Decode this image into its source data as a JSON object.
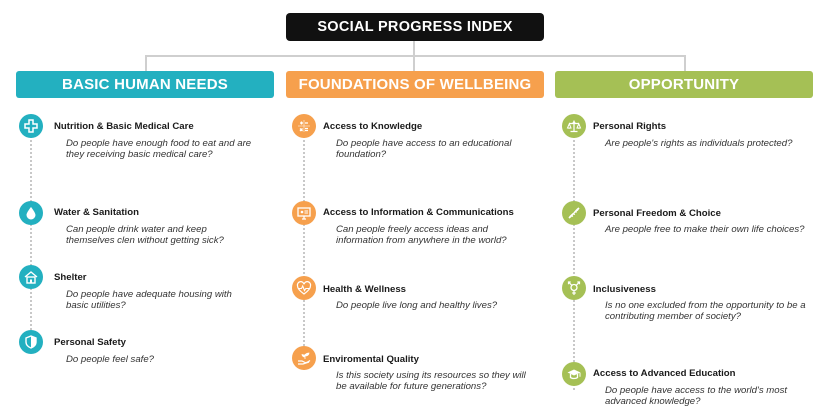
{
  "title": "SOCIAL PROGRESS INDEX",
  "colors": {
    "teal": "#23b0c0",
    "orange": "#f6a04d",
    "green": "#a5c055",
    "dark": "#111111"
  },
  "dimensions": [
    {
      "name": "BASIC HUMAN NEEDS",
      "components": [
        {
          "icon": "medical-cross-icon",
          "title": "Nutrition & Basic Medical Care",
          "question": "Do people have enough food to eat and are they receiving basic medical care?"
        },
        {
          "icon": "water-drop-icon",
          "title": "Water & Sanitation",
          "question": "Can people drink water and keep themselves clen without getting sick?"
        },
        {
          "icon": "house-icon",
          "title": "Shelter",
          "question": "Do people have adequate housing with basic utilities?"
        },
        {
          "icon": "shield-icon",
          "title": "Personal Safety",
          "question": "Do people feel safe?"
        }
      ]
    },
    {
      "name": "FOUNDATIONS OF WELLBEING",
      "components": [
        {
          "icon": "calculator-icon",
          "title": "Access to Knowledge",
          "question": "Do people have access to an educational foundation?"
        },
        {
          "icon": "monitor-icon",
          "title": "Access to Information & Communications",
          "question": "Can people freely access ideas and information from anywhere in the world?"
        },
        {
          "icon": "heartbeat-icon",
          "title": "Health & Wellness",
          "question": "Do people live long and healthy lives?"
        },
        {
          "icon": "hand-plant-icon",
          "title": "Enviromental Quality",
          "question": "Is this society using its resources so they will be available for future generations?"
        }
      ]
    },
    {
      "name": "OPPORTUNITY",
      "components": [
        {
          "icon": "scales-icon",
          "title": "Personal Rights",
          "question": "Are people's rights as individuals protected?"
        },
        {
          "icon": "dna-icon",
          "title": "Personal Freedom & Choice",
          "question": "Are people free to make their own life choices?"
        },
        {
          "icon": "gender-icon",
          "title": "Inclusiveness",
          "question": "Is no one excluded from the opportunity to be a contributing member of society?"
        },
        {
          "icon": "graduation-cap-icon",
          "title": "Access to Advanced Education",
          "question": "Do people have access to the world's most advanced knowledge?"
        }
      ]
    }
  ]
}
